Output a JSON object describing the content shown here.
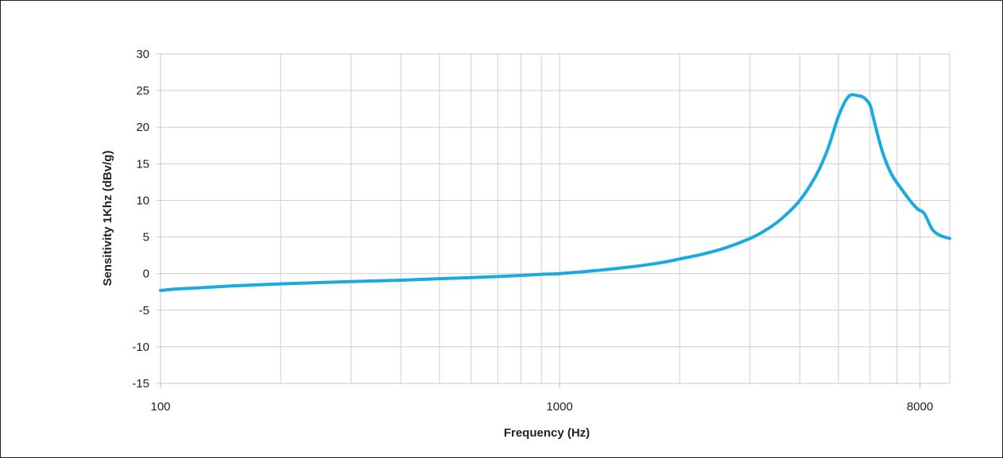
{
  "chart_data": {
    "type": "line",
    "title": "",
    "xlabel": "Frequency (Hz)",
    "ylabel": "Sensitivity 1Khz (dBv/g)",
    "xscale": "log",
    "xlim": [
      100,
      9500
    ],
    "ylim": [
      -15,
      30
    ],
    "grid": true,
    "legend": "none",
    "xticks": [
      {
        "value": 100,
        "label": "100"
      },
      {
        "value": 1000,
        "label": "1000"
      },
      {
        "value": 8000,
        "label": "8000"
      }
    ],
    "yticks": [
      {
        "value": 30,
        "label": "30"
      },
      {
        "value": 25,
        "label": "25"
      },
      {
        "value": 20,
        "label": "20"
      },
      {
        "value": 15,
        "label": "15"
      },
      {
        "value": 10,
        "label": "10"
      },
      {
        "value": 5,
        "label": "5"
      },
      {
        "value": 0,
        "label": "0"
      },
      {
        "value": -5,
        "label": "-5"
      },
      {
        "value": -10,
        "label": "-10"
      },
      {
        "value": -15,
        "label": "-15"
      }
    ],
    "x_gridlines": [
      100,
      200,
      300,
      400,
      500,
      600,
      700,
      800,
      900,
      1000,
      2000,
      3000,
      4000,
      5000,
      6000,
      7000,
      8000,
      9500
    ],
    "line_color": "#1aaae0",
    "series": [
      {
        "x": [
          100,
          110,
          120,
          150,
          200,
          300,
          400,
          500,
          600,
          700,
          800,
          900,
          1000,
          1200,
          1500,
          1800,
          2000,
          2300,
          2600,
          3000,
          3300,
          3600,
          4000,
          4400,
          4700,
          5000,
          5300,
          5600,
          5800,
          6000,
          6100,
          6300,
          6500,
          6800,
          7200,
          7600,
          7900,
          8200,
          8600,
          9000,
          9500
        ],
        "y": [
          -2.3,
          -2.1,
          -2.0,
          -1.7,
          -1.4,
          -1.1,
          -0.9,
          -0.7,
          -0.55,
          -0.4,
          -0.25,
          -0.1,
          0.0,
          0.35,
          0.9,
          1.5,
          2.0,
          2.7,
          3.5,
          4.8,
          6.0,
          7.5,
          10.0,
          13.5,
          17.0,
          21.5,
          24.2,
          24.3,
          24.0,
          23.0,
          21.5,
          18.5,
          16.0,
          13.5,
          11.5,
          9.8,
          8.8,
          8.2,
          6.0,
          5.2,
          4.8
        ]
      }
    ]
  }
}
